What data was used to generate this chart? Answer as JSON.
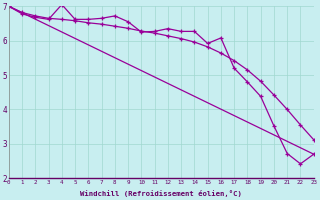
{
  "xlabel": "Windchill (Refroidissement éolien,°C)",
  "bg_color": "#c8eef0",
  "grid_color": "#a0d8d0",
  "line_color": "#990099",
  "x_min": 0,
  "x_max": 23,
  "y_min": 2,
  "y_max": 7,
  "series1_x": [
    0,
    1,
    2,
    3,
    4,
    5,
    6,
    7,
    8,
    9,
    10,
    11,
    12,
    13,
    14,
    15,
    16,
    17,
    18,
    19,
    20,
    21,
    22,
    23
  ],
  "series1_y": [
    7.0,
    6.78,
    6.68,
    6.62,
    7.05,
    6.62,
    6.62,
    6.65,
    6.72,
    6.55,
    6.25,
    6.27,
    6.35,
    6.27,
    6.27,
    5.92,
    6.08,
    5.2,
    4.8,
    4.38,
    3.52,
    2.72,
    2.42,
    2.7
  ],
  "series2_x": [
    0,
    23
  ],
  "series2_y": [
    7.0,
    2.7
  ],
  "series3_x": [
    0,
    1,
    2,
    3,
    4,
    5,
    6,
    7,
    8,
    9,
    10,
    11,
    12,
    13,
    14,
    15,
    16,
    17,
    18,
    19,
    20,
    21,
    22,
    23
  ],
  "series3_y": [
    7.0,
    6.82,
    6.72,
    6.65,
    6.62,
    6.58,
    6.52,
    6.48,
    6.42,
    6.36,
    6.28,
    6.22,
    6.14,
    6.06,
    5.96,
    5.82,
    5.64,
    5.42,
    5.15,
    4.82,
    4.42,
    4.0,
    3.55,
    3.12
  ]
}
